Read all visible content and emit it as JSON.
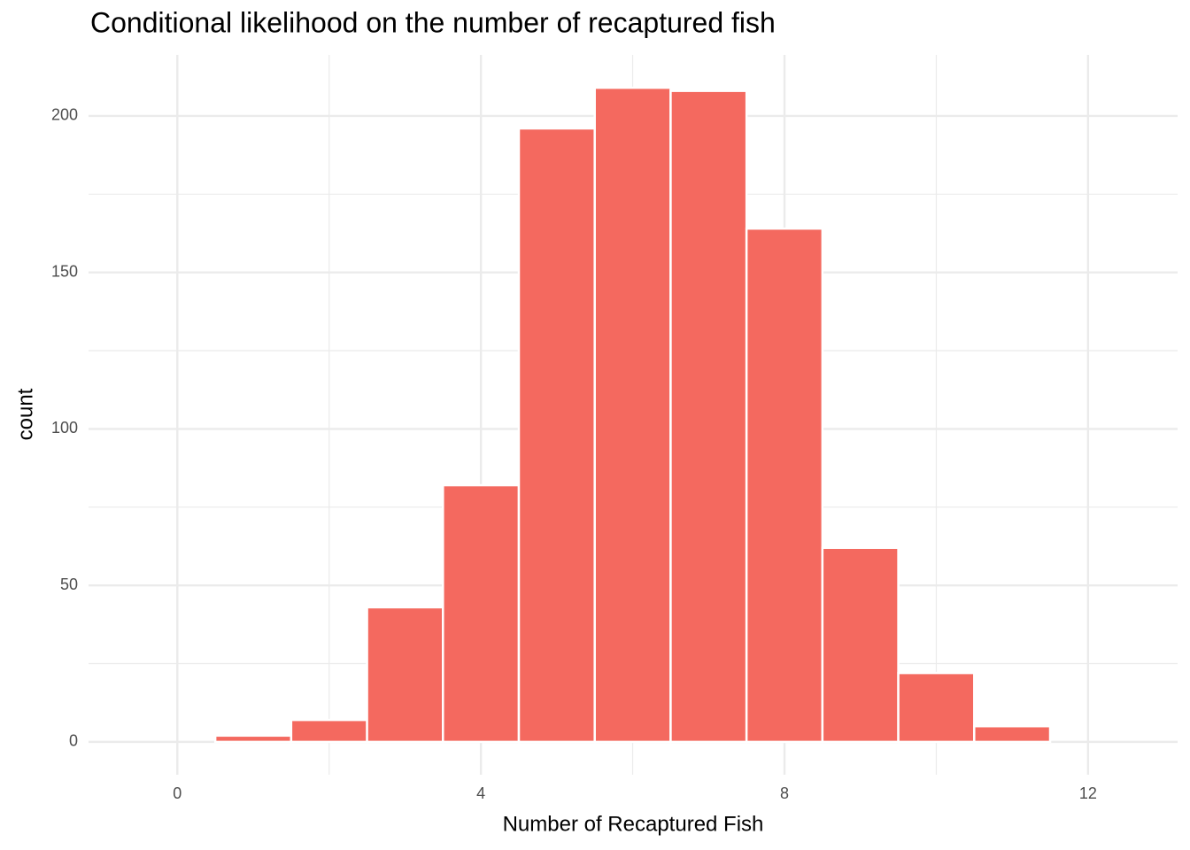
{
  "chart_data": {
    "type": "histogram",
    "title": "Conditional likelihood on the number of recaptured fish",
    "x_label": "Number of Recaptured Fish",
    "y_label": "count",
    "bins": [
      -0.5,
      0.5,
      1.5,
      2.5,
      3.5,
      4.5,
      5.5,
      6.5,
      7.5,
      8.5,
      9.5,
      10.5,
      11.5,
      12.5
    ],
    "values": [
      0,
      2,
      7,
      43,
      82,
      196,
      209,
      208,
      164,
      62,
      22,
      5,
      0
    ],
    "color": "#f4695f",
    "xlim": [
      -1.17,
      13.18
    ],
    "ylim": [
      -10.5,
      219.5
    ],
    "xticks": [
      0,
      4,
      8,
      12
    ],
    "yticks": [
      0,
      50,
      100,
      150,
      200
    ],
    "grid": true
  }
}
